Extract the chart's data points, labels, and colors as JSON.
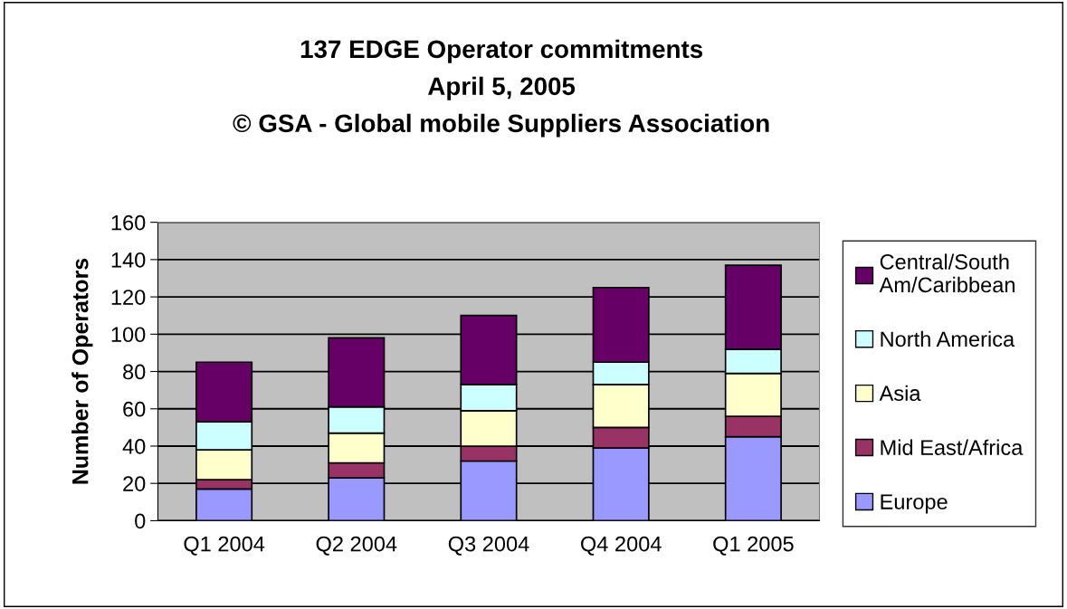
{
  "chart_data": {
    "type": "bar",
    "title": "137 EDGE Operator commitments\nApril 5, 2005\n© GSA - Global mobile Suppliers Association",
    "ylabel": "Number of Operators",
    "categories": [
      "Q1 2004",
      "Q2 2004",
      "Q3 2004",
      "Q4 2004",
      "Q1 2005"
    ],
    "stacked": true,
    "series": [
      {
        "name": "Europe",
        "color": "#9999ff",
        "values": [
          17,
          23,
          32,
          39,
          45
        ]
      },
      {
        "name": "Mid East/Africa",
        "color": "#993366",
        "values": [
          5,
          8,
          8,
          11,
          11
        ]
      },
      {
        "name": "Asia",
        "color": "#ffffcc",
        "values": [
          16,
          16,
          19,
          23,
          23
        ]
      },
      {
        "name": "North America",
        "color": "#ccffff",
        "values": [
          15,
          14,
          14,
          12,
          13
        ]
      },
      {
        "name": "Central/South\nAm/Caribbean",
        "color": "#660066",
        "values": [
          32,
          37,
          37,
          40,
          45
        ]
      }
    ],
    "ylim": [
      0,
      160
    ],
    "yticks": [
      0,
      20,
      40,
      60,
      80,
      100,
      120,
      140,
      160
    ],
    "grid": "y",
    "legend": "right"
  }
}
